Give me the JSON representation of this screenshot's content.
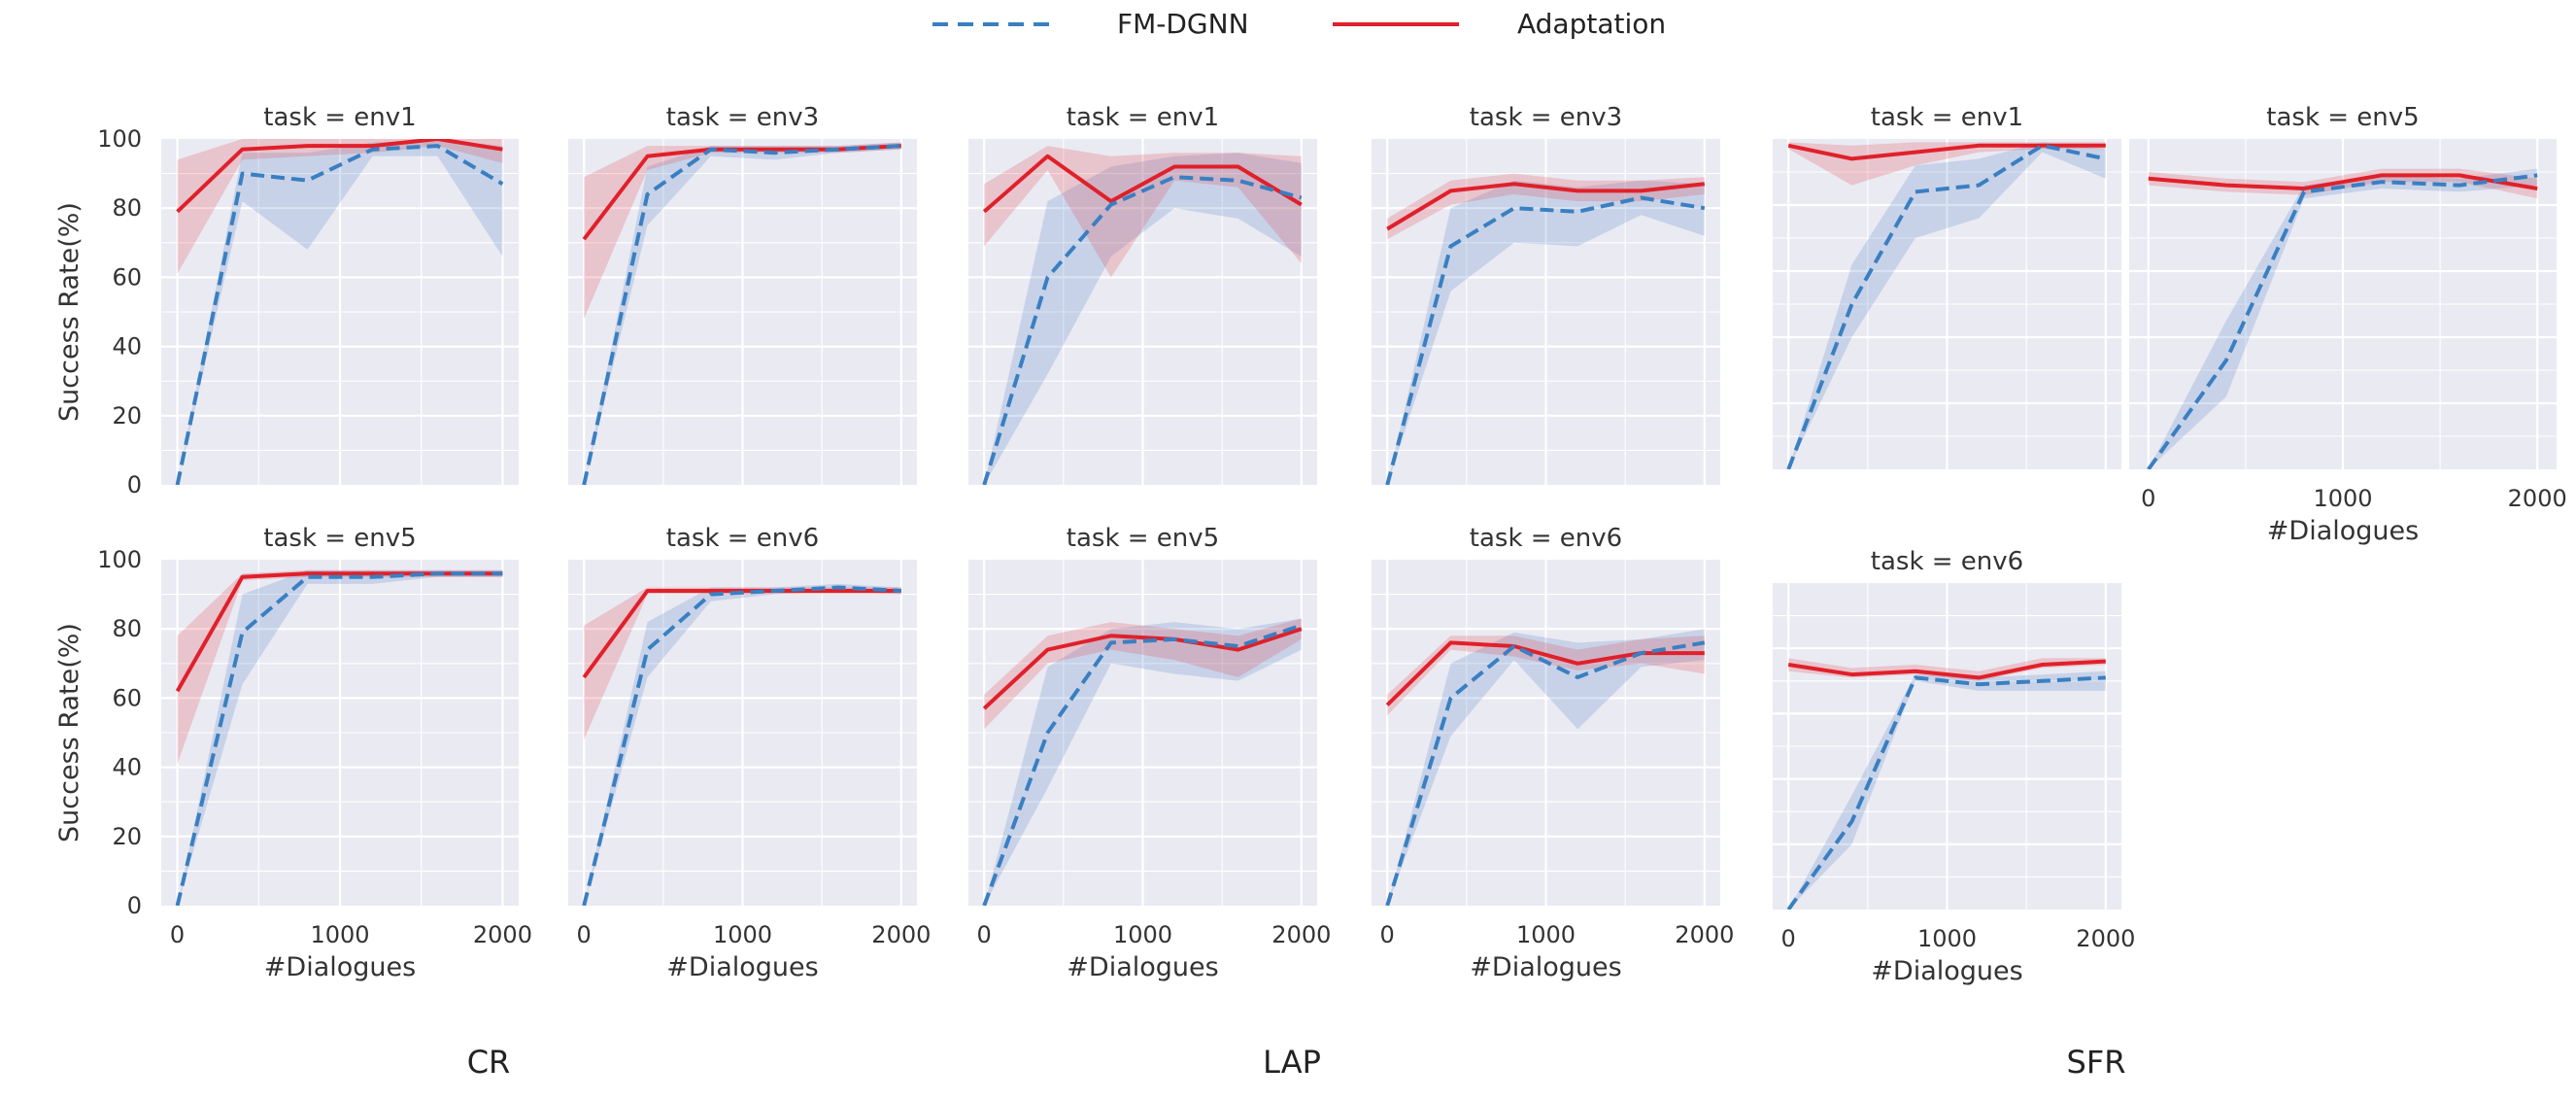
{
  "legend": {
    "items": [
      {
        "label": "FM-DGNN",
        "color": "#3a7fc1",
        "dash": true
      },
      {
        "label": "Adaptation",
        "color": "#e0202a",
        "dash": false
      }
    ]
  },
  "group_labels": [
    "CR",
    "LAP",
    "SFR"
  ],
  "chart_data": [
    {
      "type": "line",
      "title": "task = env1",
      "xlabel": "",
      "ylabel": "Success Rate(%)",
      "xlim": [
        0,
        2000
      ],
      "ylim": [
        0,
        100
      ],
      "x": [
        0,
        400,
        800,
        1200,
        1600,
        2000
      ],
      "series": [
        {
          "name": "FM-DGNN",
          "values": [
            0,
            90,
            88,
            97,
            98,
            87
          ],
          "lower": [
            0,
            82,
            68,
            95,
            95,
            66
          ],
          "upper": [
            0,
            96,
            96,
            99,
            100,
            98
          ]
        },
        {
          "name": "Adaptation",
          "values": [
            79,
            97,
            98,
            98,
            100,
            97
          ],
          "lower": [
            61,
            94,
            95,
            96,
            98,
            93
          ],
          "upper": [
            94,
            100,
            100,
            100,
            100,
            100
          ]
        }
      ]
    },
    {
      "type": "line",
      "title": "task = env3",
      "xlabel": "",
      "ylabel": "",
      "xlim": [
        0,
        2000
      ],
      "ylim": [
        0,
        100
      ],
      "x": [
        0,
        400,
        800,
        1200,
        1600,
        2000
      ],
      "series": [
        {
          "name": "FM-DGNN",
          "values": [
            0,
            84,
            97,
            96,
            97,
            98
          ],
          "lower": [
            0,
            75,
            95,
            94,
            96,
            97
          ],
          "upper": [
            0,
            92,
            98,
            98,
            98,
            99
          ]
        },
        {
          "name": "Adaptation",
          "values": [
            71,
            95,
            97,
            97,
            97,
            98
          ],
          "lower": [
            48,
            91,
            96,
            96,
            96,
            97
          ],
          "upper": [
            89,
            98,
            98,
            98,
            98,
            99
          ]
        }
      ]
    },
    {
      "type": "line",
      "title": "task = env1",
      "xlabel": "",
      "ylabel": "",
      "xlim": [
        0,
        2000
      ],
      "ylim": [
        0,
        100
      ],
      "x": [
        0,
        400,
        800,
        1200,
        1600,
        2000
      ],
      "series": [
        {
          "name": "FM-DGNN",
          "values": [
            0,
            60,
            81,
            89,
            88,
            83
          ],
          "lower": [
            0,
            32,
            66,
            80,
            77,
            66
          ],
          "upper": [
            0,
            82,
            92,
            95,
            96,
            93
          ]
        },
        {
          "name": "Adaptation",
          "values": [
            79,
            95,
            82,
            92,
            92,
            81
          ],
          "lower": [
            69,
            91,
            60,
            88,
            86,
            64
          ],
          "upper": [
            87,
            98,
            95,
            96,
            96,
            95
          ]
        }
      ]
    },
    {
      "type": "line",
      "title": "task = env3",
      "xlabel": "",
      "ylabel": "",
      "xlim": [
        0,
        2000
      ],
      "ylim": [
        0,
        100
      ],
      "x": [
        0,
        400,
        800,
        1200,
        1600,
        2000
      ],
      "series": [
        {
          "name": "FM-DGNN",
          "values": [
            0,
            69,
            80,
            79,
            83,
            80
          ],
          "lower": [
            0,
            56,
            70,
            69,
            78,
            72
          ],
          "upper": [
            0,
            80,
            88,
            86,
            88,
            87
          ]
        },
        {
          "name": "Adaptation",
          "values": [
            74,
            85,
            87,
            85,
            85,
            87
          ],
          "lower": [
            71,
            81,
            84,
            82,
            82,
            84
          ],
          "upper": [
            77,
            88,
            90,
            88,
            88,
            89
          ]
        }
      ]
    },
    {
      "type": "line",
      "title": "task = env1",
      "xlabel": "",
      "ylabel": "",
      "xlim": [
        0,
        2000
      ],
      "ylim": [
        0,
        100
      ],
      "x": [
        0,
        400,
        800,
        1200,
        1600,
        2000
      ],
      "series": [
        {
          "name": "FM-DGNN",
          "values": [
            0,
            50,
            84,
            86,
            98,
            94
          ],
          "lower": [
            0,
            40,
            70,
            76,
            96,
            88
          ],
          "upper": [
            0,
            62,
            92,
            94,
            99,
            97
          ]
        },
        {
          "name": "Adaptation",
          "values": [
            98,
            94,
            96,
            98,
            98,
            98
          ],
          "lower": [
            97,
            86,
            92,
            96,
            97,
            97
          ],
          "upper": [
            99,
            98,
            99,
            99,
            99,
            99
          ]
        }
      ]
    },
    {
      "type": "line",
      "title": "task = env5",
      "xlabel": "#Dialogues",
      "ylabel": "",
      "xlim": [
        0,
        2000
      ],
      "ylim": [
        0,
        100
      ],
      "x": [
        0,
        400,
        800,
        1200,
        1600,
        2000
      ],
      "series": [
        {
          "name": "FM-DGNN",
          "values": [
            0,
            33,
            84,
            87,
            86,
            89
          ],
          "lower": [
            0,
            22,
            82,
            85,
            84,
            86
          ],
          "upper": [
            0,
            45,
            86,
            89,
            88,
            91
          ]
        },
        {
          "name": "Adaptation",
          "values": [
            88,
            86,
            85,
            89,
            89,
            85
          ],
          "lower": [
            86,
            84,
            83,
            87,
            87,
            82
          ],
          "upper": [
            90,
            88,
            87,
            91,
            91,
            88
          ]
        }
      ]
    },
    {
      "type": "line",
      "title": "task = env5",
      "xlabel": "#Dialogues",
      "ylabel": "Success Rate(%)",
      "xlim": [
        0,
        2000
      ],
      "ylim": [
        0,
        100
      ],
      "x": [
        0,
        400,
        800,
        1200,
        1600,
        2000
      ],
      "series": [
        {
          "name": "FM-DGNN",
          "values": [
            0,
            79,
            95,
            95,
            96,
            96
          ],
          "lower": [
            0,
            64,
            93,
            93,
            95,
            95
          ],
          "upper": [
            0,
            90,
            97,
            97,
            97,
            97
          ]
        },
        {
          "name": "Adaptation",
          "values": [
            62,
            95,
            96,
            96,
            96,
            96
          ],
          "lower": [
            41,
            94,
            95,
            95,
            95,
            95
          ],
          "upper": [
            78,
            96,
            97,
            97,
            97,
            97
          ]
        }
      ]
    },
    {
      "type": "line",
      "title": "task = env6",
      "xlabel": "#Dialogues",
      "ylabel": "",
      "xlim": [
        0,
        2000
      ],
      "ylim": [
        0,
        100
      ],
      "x": [
        0,
        400,
        800,
        1200,
        1600,
        2000
      ],
      "series": [
        {
          "name": "FM-DGNN",
          "values": [
            0,
            74,
            90,
            91,
            92,
            91
          ],
          "lower": [
            0,
            66,
            88,
            90,
            91,
            90
          ],
          "upper": [
            0,
            82,
            92,
            92,
            93,
            92
          ]
        },
        {
          "name": "Adaptation",
          "values": [
            66,
            91,
            91,
            91,
            91,
            91
          ],
          "lower": [
            48,
            90,
            90,
            90,
            90,
            90
          ],
          "upper": [
            81,
            92,
            92,
            92,
            92,
            92
          ]
        }
      ]
    },
    {
      "type": "line",
      "title": "task = env5",
      "xlabel": "#Dialogues",
      "ylabel": "",
      "xlim": [
        0,
        2000
      ],
      "ylim": [
        0,
        100
      ],
      "x": [
        0,
        400,
        800,
        1200,
        1600,
        2000
      ],
      "series": [
        {
          "name": "FM-DGNN",
          "values": [
            0,
            50,
            76,
            77,
            75,
            81
          ],
          "lower": [
            0,
            34,
            70,
            67,
            65,
            74
          ],
          "upper": [
            0,
            69,
            80,
            82,
            80,
            83
          ]
        },
        {
          "name": "Adaptation",
          "values": [
            57,
            74,
            78,
            77,
            74,
            80
          ],
          "lower": [
            51,
            70,
            74,
            71,
            66,
            77
          ],
          "upper": [
            61,
            78,
            82,
            80,
            78,
            83
          ]
        }
      ]
    },
    {
      "type": "line",
      "title": "task = env6",
      "xlabel": "#Dialogues",
      "ylabel": "",
      "xlim": [
        0,
        2000
      ],
      "ylim": [
        0,
        100
      ],
      "x": [
        0,
        400,
        800,
        1200,
        1600,
        2000
      ],
      "series": [
        {
          "name": "FM-DGNN",
          "values": [
            0,
            60,
            75,
            66,
            73,
            76
          ],
          "lower": [
            0,
            49,
            71,
            51,
            69,
            71
          ],
          "upper": [
            0,
            70,
            79,
            76,
            77,
            80
          ]
        },
        {
          "name": "Adaptation",
          "values": [
            58,
            76,
            75,
            70,
            73,
            73
          ],
          "lower": [
            55,
            74,
            72,
            68,
            70,
            67
          ],
          "upper": [
            61,
            78,
            78,
            74,
            77,
            78
          ]
        }
      ]
    },
    {
      "type": "line",
      "title": "task = env6",
      "xlabel": "#Dialogues",
      "ylabel": "",
      "xlim": [
        0,
        2000
      ],
      "ylim": [
        0,
        100
      ],
      "x": [
        0,
        400,
        800,
        1200,
        1600,
        2000
      ],
      "series": [
        {
          "name": "FM-DGNN",
          "values": [
            0,
            27,
            71,
            69,
            70,
            71
          ],
          "lower": [
            0,
            20,
            70,
            67,
            67,
            67
          ],
          "upper": [
            0,
            35,
            72,
            71,
            72,
            73
          ]
        },
        {
          "name": "Adaptation",
          "values": [
            75,
            72,
            73,
            71,
            75,
            76
          ],
          "lower": [
            73,
            71,
            72,
            70,
            74,
            75
          ],
          "upper": [
            77,
            74,
            75,
            73,
            77,
            77
          ]
        }
      ]
    }
  ]
}
